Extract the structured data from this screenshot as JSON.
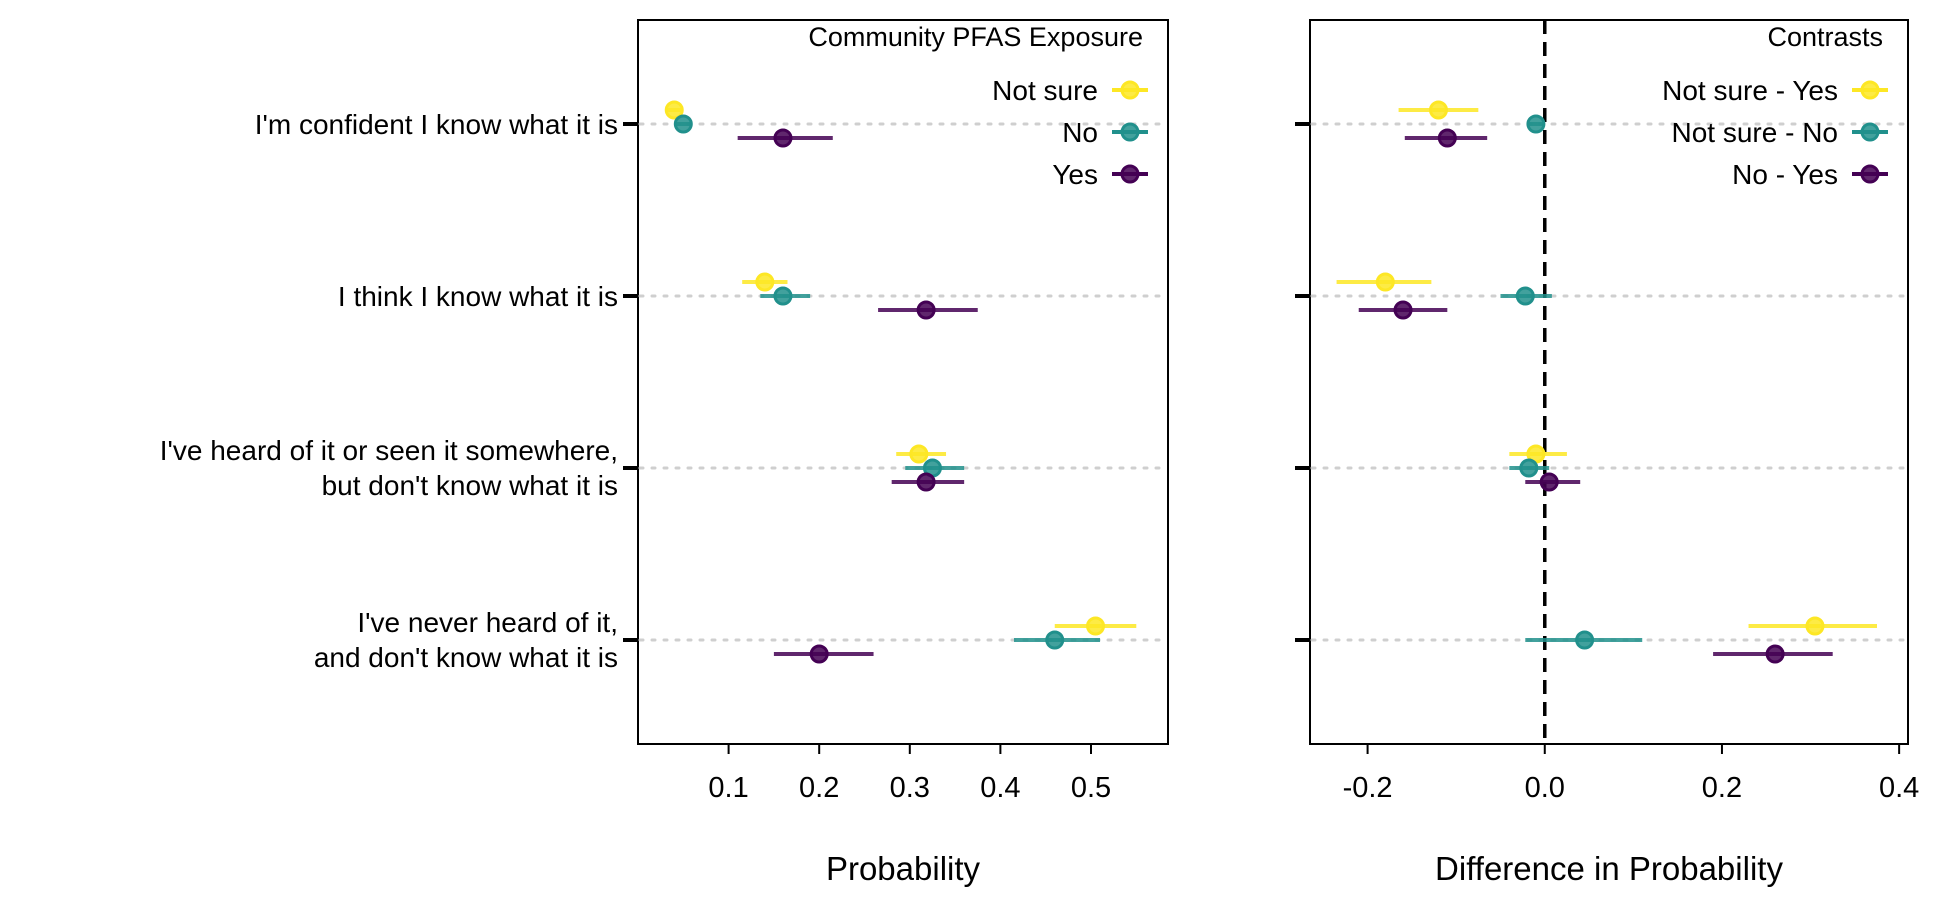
{
  "chart_data": [
    {
      "type": "scatter",
      "panel": "left",
      "xlabel": "Probability",
      "xlim": [
        0.0,
        0.585
      ],
      "xticks": [
        "0.1",
        "0.2",
        "0.3",
        "0.4",
        "0.5"
      ],
      "categories": [
        [
          "I'm confident I know what it is"
        ],
        [
          "I think I know what it is"
        ],
        [
          "I've heard of it or seen it somewhere,",
          "but don't know what it is"
        ],
        [
          "I've never heard of it,",
          "and don't know what it is"
        ]
      ],
      "legend": {
        "title": "Community PFAS Exposure",
        "position": "top-right"
      },
      "grid": "horizontal dotted at categories",
      "series": [
        {
          "name": "Not sure",
          "color": "#FDE725",
          "offset": -1,
          "values": [
            0.04,
            0.14,
            0.31,
            0.505
          ],
          "lower": [
            0.03,
            0.115,
            0.285,
            0.46
          ],
          "upper": [
            0.05,
            0.165,
            0.34,
            0.55
          ]
        },
        {
          "name": "No",
          "color": "#21908C",
          "offset": 0,
          "values": [
            0.05,
            0.16,
            0.325,
            0.46
          ],
          "lower": [
            0.04,
            0.135,
            0.295,
            0.415
          ],
          "upper": [
            0.06,
            0.19,
            0.36,
            0.51
          ]
        },
        {
          "name": "Yes",
          "color": "#440154",
          "offset": 1,
          "values": [
            0.16,
            0.318,
            0.318,
            0.2
          ],
          "lower": [
            0.11,
            0.265,
            0.28,
            0.15
          ],
          "upper": [
            0.215,
            0.375,
            0.36,
            0.26
          ]
        }
      ]
    },
    {
      "type": "scatter",
      "panel": "right",
      "xlabel": "Difference in Probability",
      "xlim": [
        -0.265,
        0.41
      ],
      "xticks": [
        "-0.2",
        "0.0",
        "0.2",
        "0.4"
      ],
      "reference_line": 0,
      "legend": {
        "title": "Contrasts",
        "position": "top-right"
      },
      "grid": "horizontal dotted at categories",
      "series": [
        {
          "name": "Not sure - Yes",
          "color": "#FDE725",
          "offset": -1,
          "values": [
            -0.12,
            -0.18,
            -0.01,
            0.305
          ],
          "lower": [
            -0.165,
            -0.235,
            -0.04,
            0.23
          ],
          "upper": [
            -0.075,
            -0.128,
            0.025,
            0.375
          ]
        },
        {
          "name": "Not sure - No",
          "color": "#21908C",
          "offset": 0,
          "values": [
            -0.01,
            -0.022,
            -0.018,
            0.045
          ],
          "lower": [
            -0.02,
            -0.05,
            -0.04,
            -0.022
          ],
          "upper": [
            0.0,
            0.008,
            0.005,
            0.11
          ]
        },
        {
          "name": "No - Yes",
          "color": "#440154",
          "offset": 1,
          "values": [
            -0.11,
            -0.16,
            0.005,
            0.26
          ],
          "lower": [
            -0.158,
            -0.21,
            -0.022,
            0.19
          ],
          "upper": [
            -0.065,
            -0.11,
            0.04,
            0.325
          ]
        }
      ]
    }
  ]
}
